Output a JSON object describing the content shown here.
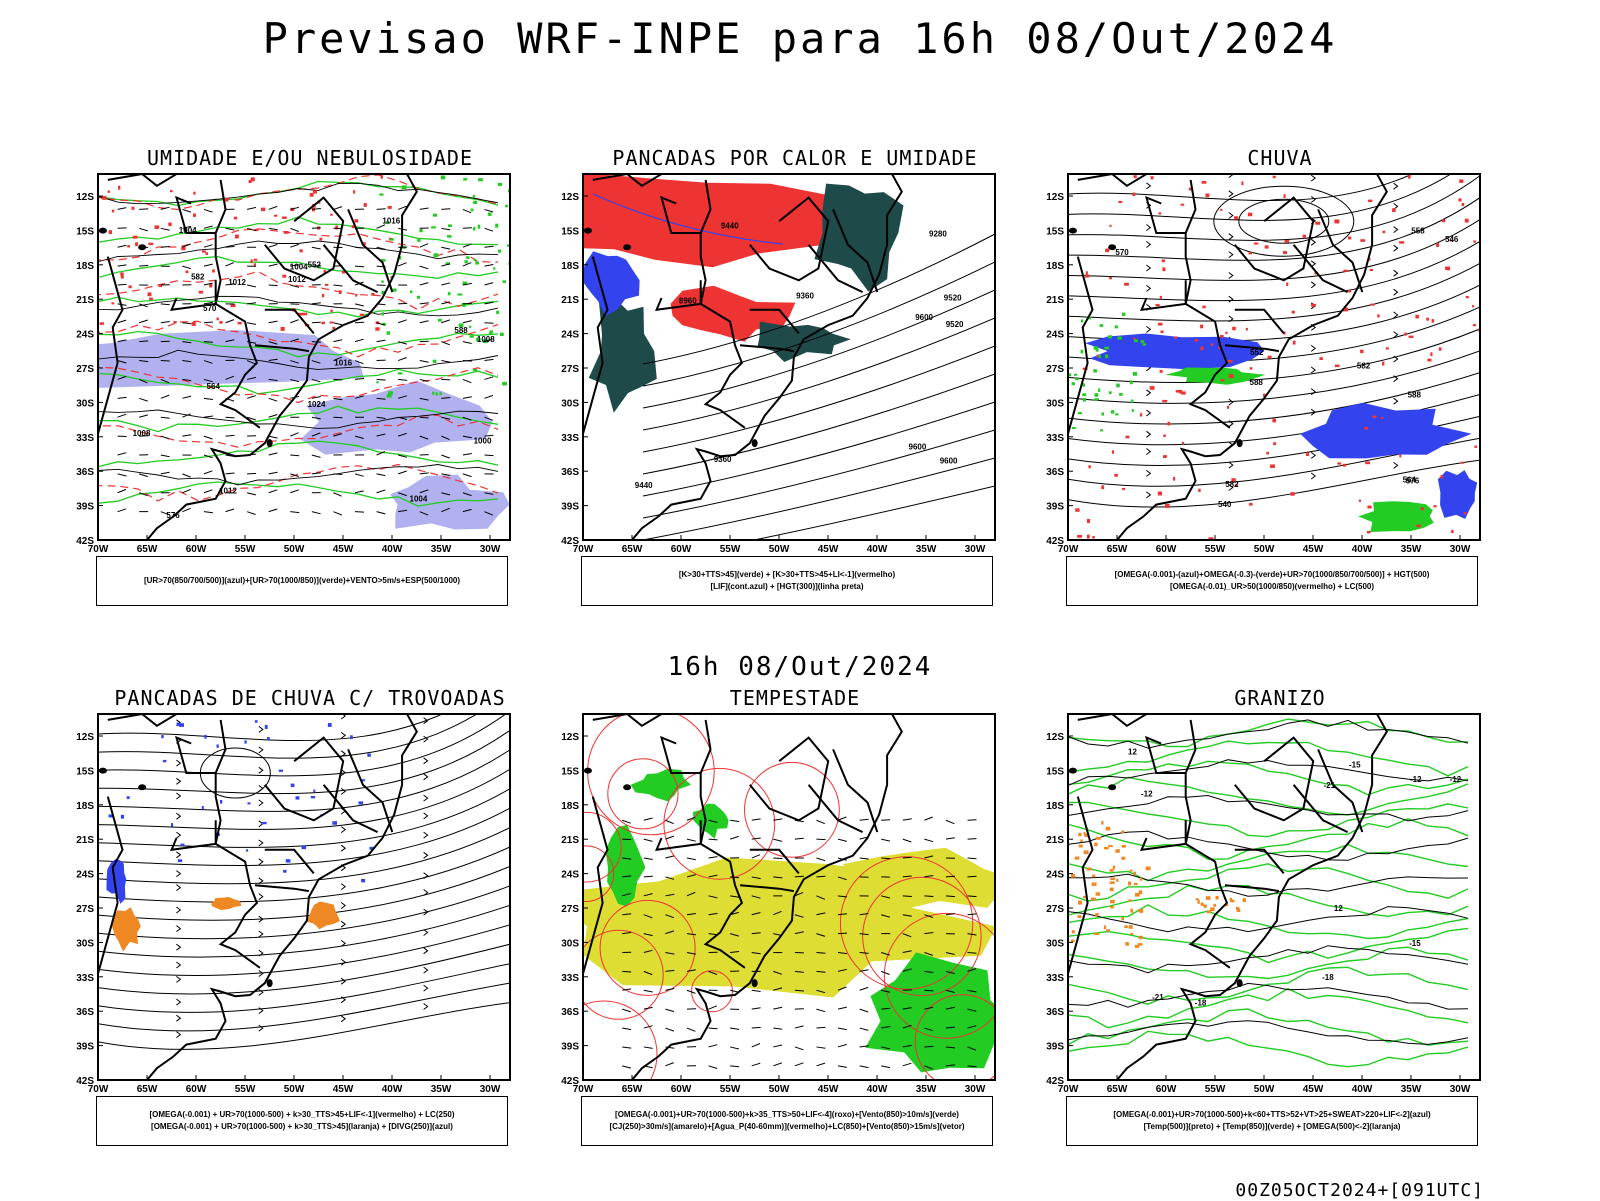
{
  "main_title": "Previsao WRF-INPE  para 16h 08/Out/2024",
  "mid_title": "16h 08/Out/2024",
  "footer": "00Z05OCT2024+[091UTC]",
  "lat_labels": [
    "12S",
    "15S",
    "18S",
    "21S",
    "24S",
    "27S",
    "30S",
    "33S",
    "36S",
    "39S",
    "42S"
  ],
  "lon_labels": [
    "70W",
    "65W",
    "60W",
    "55W",
    "50W",
    "45W",
    "40W",
    "35W",
    "30W"
  ],
  "colors": {
    "blue": "#3344ee",
    "green": "#22cc22",
    "red": "#ee3333",
    "lavender": "#a9a9ee",
    "darkteal": "#1f4a4a",
    "yellow": "#dddd33",
    "orange": "#ee8822"
  },
  "panels": [
    {
      "id": "umidade",
      "title": "UMIDADE E/OU NEBULOSIDADE",
      "legend": [
        "[UR>70(850/700/500)](azul)+[UR>70(1000/850)](verde)+VENTO>5m/s+ESP(500/1000)"
      ],
      "labels": [
        "1004",
        "1004",
        "1000",
        "1008",
        "1012",
        "1016",
        "1012",
        "1016",
        "1012",
        "1008",
        "1004",
        "1024",
        "552",
        "570",
        "564",
        "576",
        "582",
        "588"
      ]
    },
    {
      "id": "pancadas-calor",
      "title": "PANCADAS POR CALOR E UMIDADE",
      "legend": [
        "[K>30+TTS>45](verde) + [K>30+TTS>45+LI<-1](vermelho)",
        "[LIF](cont.azul) + [HGT(300)](linha preta)"
      ],
      "labels": [
        "9600",
        "9520",
        "9600",
        "9360",
        "9440",
        "9440",
        "9600",
        "9360",
        "9280",
        "8960",
        "9520"
      ]
    },
    {
      "id": "chuva",
      "title": "CHUVA",
      "legend": [
        "[OMEGA(-0.001)-(azul)+OMEGA(-0.3)-(verde)+UR>70(1000/850/700/500)] + HGT(500)",
        "[OMEGA(-0.01)_UR>50(1000/850)(vermelho) + LC(500)"
      ],
      "labels": [
        "588",
        "582",
        "576",
        "570",
        "564",
        "558",
        "552",
        "546",
        "540",
        "582",
        "588"
      ]
    },
    {
      "id": "pancadas-trovoadas",
      "title": "PANCADAS DE CHUVA C/ TROVOADAS",
      "legend": [
        "[OMEGA(-0.001) + UR>70(1000-500) + k>30_TTS>45+LIF<-1](vermelho) + LC(250)",
        "[OMEGA(-0.001) + UR>70(1000-500) + k>30_TTS>45](laranja) + [DIVG(250)](azul)"
      ],
      "labels": []
    },
    {
      "id": "tempestade",
      "title": "TEMPESTADE",
      "legend": [
        "[OMEGA(-0.001)+UR>70(1000-500)+k>35_TTS>50+LIF<-4](roxo)+[Vento(850)>10m/s](verde)",
        "[CJ(250)>30m/s](amarelo)+[Agua_P(40-60mm)](vermelho)+LC(850)+[Vento(850)>15m/s](vetor)"
      ],
      "labels": []
    },
    {
      "id": "granizo",
      "title": "GRANIZO",
      "legend": [
        "[OMEGA(-0.001)+UR>70(1000-500)+k<60+TTS>52+VT>25+SWEAT>220+LIF<-2](azul)",
        "[Temp(500)](preto) + [Temp(850)](verde) + [OMEGA(500)<-2](laranja)"
      ],
      "labels": [
        "-12",
        "-12",
        "-15",
        "-18",
        "-18",
        "-21",
        "-21",
        "12",
        "12",
        "-15",
        "-12"
      ]
    }
  ]
}
